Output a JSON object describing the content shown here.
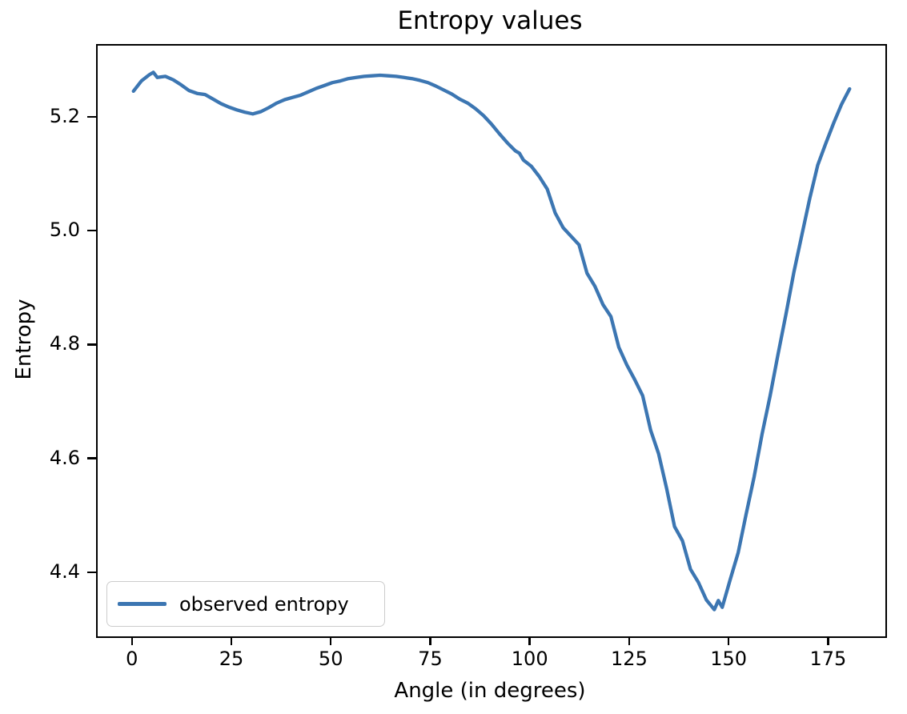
{
  "figure": {
    "title": "Entropy values",
    "xlabel": "Angle (in degrees)",
    "ylabel": "Entropy",
    "legend": {
      "label": "observed entropy"
    },
    "colors": {
      "line": "#3c76b2",
      "spine": "#000000",
      "legend_border": "#cccccc",
      "background": "#ffffff"
    }
  },
  "chart_data": {
    "type": "line",
    "title": "Entropy values",
    "xlabel": "Angle (in degrees)",
    "ylabel": "Entropy",
    "grid": false,
    "legend_position": "lower left",
    "line_color": "#3c76b2",
    "xlim": [
      -9,
      189
    ],
    "ylim": [
      4.29,
      5.328
    ],
    "x_ticks": [
      0,
      25,
      50,
      75,
      100,
      125,
      150,
      175
    ],
    "y_ticks": [
      4.4,
      4.6,
      4.8,
      5.0,
      5.2
    ],
    "series": [
      {
        "name": "observed entropy",
        "x": [
          0,
          2,
          4,
          5,
          6,
          8,
          10,
          12,
          14,
          16,
          18,
          20,
          22,
          24,
          26,
          28,
          30,
          32,
          34,
          36,
          38,
          40,
          42,
          44,
          46,
          48,
          50,
          52,
          54,
          56,
          58,
          60,
          62,
          64,
          66,
          68,
          70,
          72,
          74,
          76,
          78,
          80,
          82,
          84,
          86,
          88,
          90,
          92,
          94,
          96,
          97,
          98,
          100,
          102,
          104,
          106,
          108,
          110,
          112,
          114,
          116,
          118,
          120,
          122,
          124,
          126,
          128,
          130,
          132,
          134,
          136,
          138,
          140,
          142,
          144,
          146,
          147,
          148,
          150,
          152,
          154,
          156,
          158,
          160,
          162,
          164,
          166,
          168,
          170,
          172,
          174,
          176,
          178,
          180
        ],
        "y": [
          5.248,
          5.266,
          5.277,
          5.281,
          5.272,
          5.274,
          5.268,
          5.259,
          5.249,
          5.244,
          5.242,
          5.234,
          5.226,
          5.22,
          5.215,
          5.211,
          5.208,
          5.212,
          5.219,
          5.227,
          5.233,
          5.237,
          5.241,
          5.247,
          5.253,
          5.258,
          5.263,
          5.266,
          5.27,
          5.272,
          5.274,
          5.275,
          5.276,
          5.275,
          5.274,
          5.272,
          5.27,
          5.267,
          5.263,
          5.257,
          5.25,
          5.243,
          5.234,
          5.227,
          5.217,
          5.205,
          5.19,
          5.173,
          5.157,
          5.143,
          5.139,
          5.127,
          5.116,
          5.098,
          5.076,
          5.034,
          5.008,
          4.993,
          4.978,
          4.928,
          4.905,
          4.873,
          4.852,
          4.798,
          4.767,
          4.741,
          4.713,
          4.652,
          4.611,
          4.55,
          4.483,
          4.458,
          4.408,
          4.385,
          4.354,
          4.337,
          4.353,
          4.341,
          4.39,
          4.437,
          4.505,
          4.57,
          4.645,
          4.712,
          4.785,
          4.856,
          4.93,
          4.995,
          5.06,
          5.118,
          5.156,
          5.192,
          5.225,
          5.252
        ]
      }
    ]
  }
}
